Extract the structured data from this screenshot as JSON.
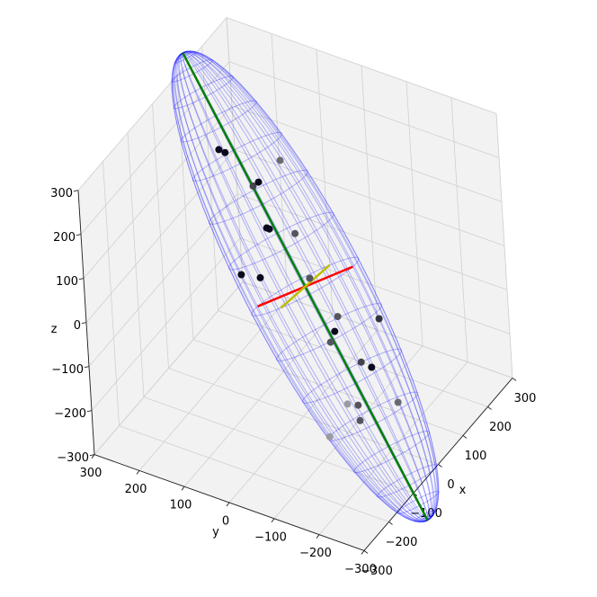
{
  "chart_data": {
    "type": "scatter3d",
    "xlabel": "x",
    "ylabel": "y",
    "zlabel": "z",
    "xlim": [
      -300,
      300
    ],
    "ylim": [
      -300,
      300
    ],
    "zlim": [
      -300,
      300
    ],
    "xticks": [
      {
        "value": -300,
        "label": "−300"
      },
      {
        "value": -200,
        "label": "−200"
      },
      {
        "value": -100,
        "label": "−100"
      },
      0,
      100,
      200,
      300
    ],
    "yticks": [
      {
        "value": -300,
        "label": "−300"
      },
      {
        "value": -200,
        "label": "−200"
      },
      {
        "value": -100,
        "label": "−100"
      },
      0,
      100,
      200,
      300
    ],
    "zticks": [
      {
        "value": -300,
        "label": "−300"
      },
      {
        "value": -200,
        "label": "−200"
      },
      {
        "value": -100,
        "label": "−100"
      },
      0,
      100,
      200,
      300
    ],
    "grid": true,
    "series": [
      {
        "x": [
          56,
          62,
          137,
          64,
          77,
          33,
          36,
          70,
          -64,
          -38,
          37,
          33,
          94,
          10,
          -10,
          13,
          23,
          20,
          -60,
          -45,
          -61,
          -128
        ],
        "y": [
          189,
          179,
          100,
          121,
          116,
          77,
          73,
          36,
          83,
          56,
          -11,
          -72,
          -129,
          -77,
          -78,
          -131,
          -148,
          -205,
          -138,
          -153,
          -165,
          -134
        ],
        "z": [
          200,
          193,
          155,
          137,
          139,
          78,
          75,
          56,
          33,
          19,
          -7,
          -69,
          -93,
          -86,
          -97,
          -138,
          -150,
          -207,
          -183,
          -190,
          -210,
          -214
        ],
        "colors": [
          "#0a0a1e",
          "#0a0a1e",
          "#6a6a72",
          "#45454f",
          "#0a0a1e",
          "#0a0a1e",
          "#0a0a1e",
          "#55555f",
          "#0a0a1e",
          "#0a0a1e",
          "#55555f",
          "#55555f",
          "#333340",
          "#0a0a1e",
          "#55555f",
          "#44444e",
          "#0a0a1e",
          "#6a6a72",
          "#9a9aa2",
          "#55555f",
          "#55555f",
          "#9a9aa2"
        ]
      }
    ],
    "ellipsoid": {
      "center": [
        20,
        -10,
        -15
      ],
      "color": "#0000ff",
      "axes": [
        {
          "color": "#008000",
          "vector": [
            100,
            306,
            354
          ]
        },
        {
          "color": "#ff0000",
          "vector": [
            98,
            -52,
            0
          ]
        },
        {
          "color": "#bfbf00",
          "vector": [
            80,
            -10,
            0
          ]
        }
      ]
    }
  }
}
